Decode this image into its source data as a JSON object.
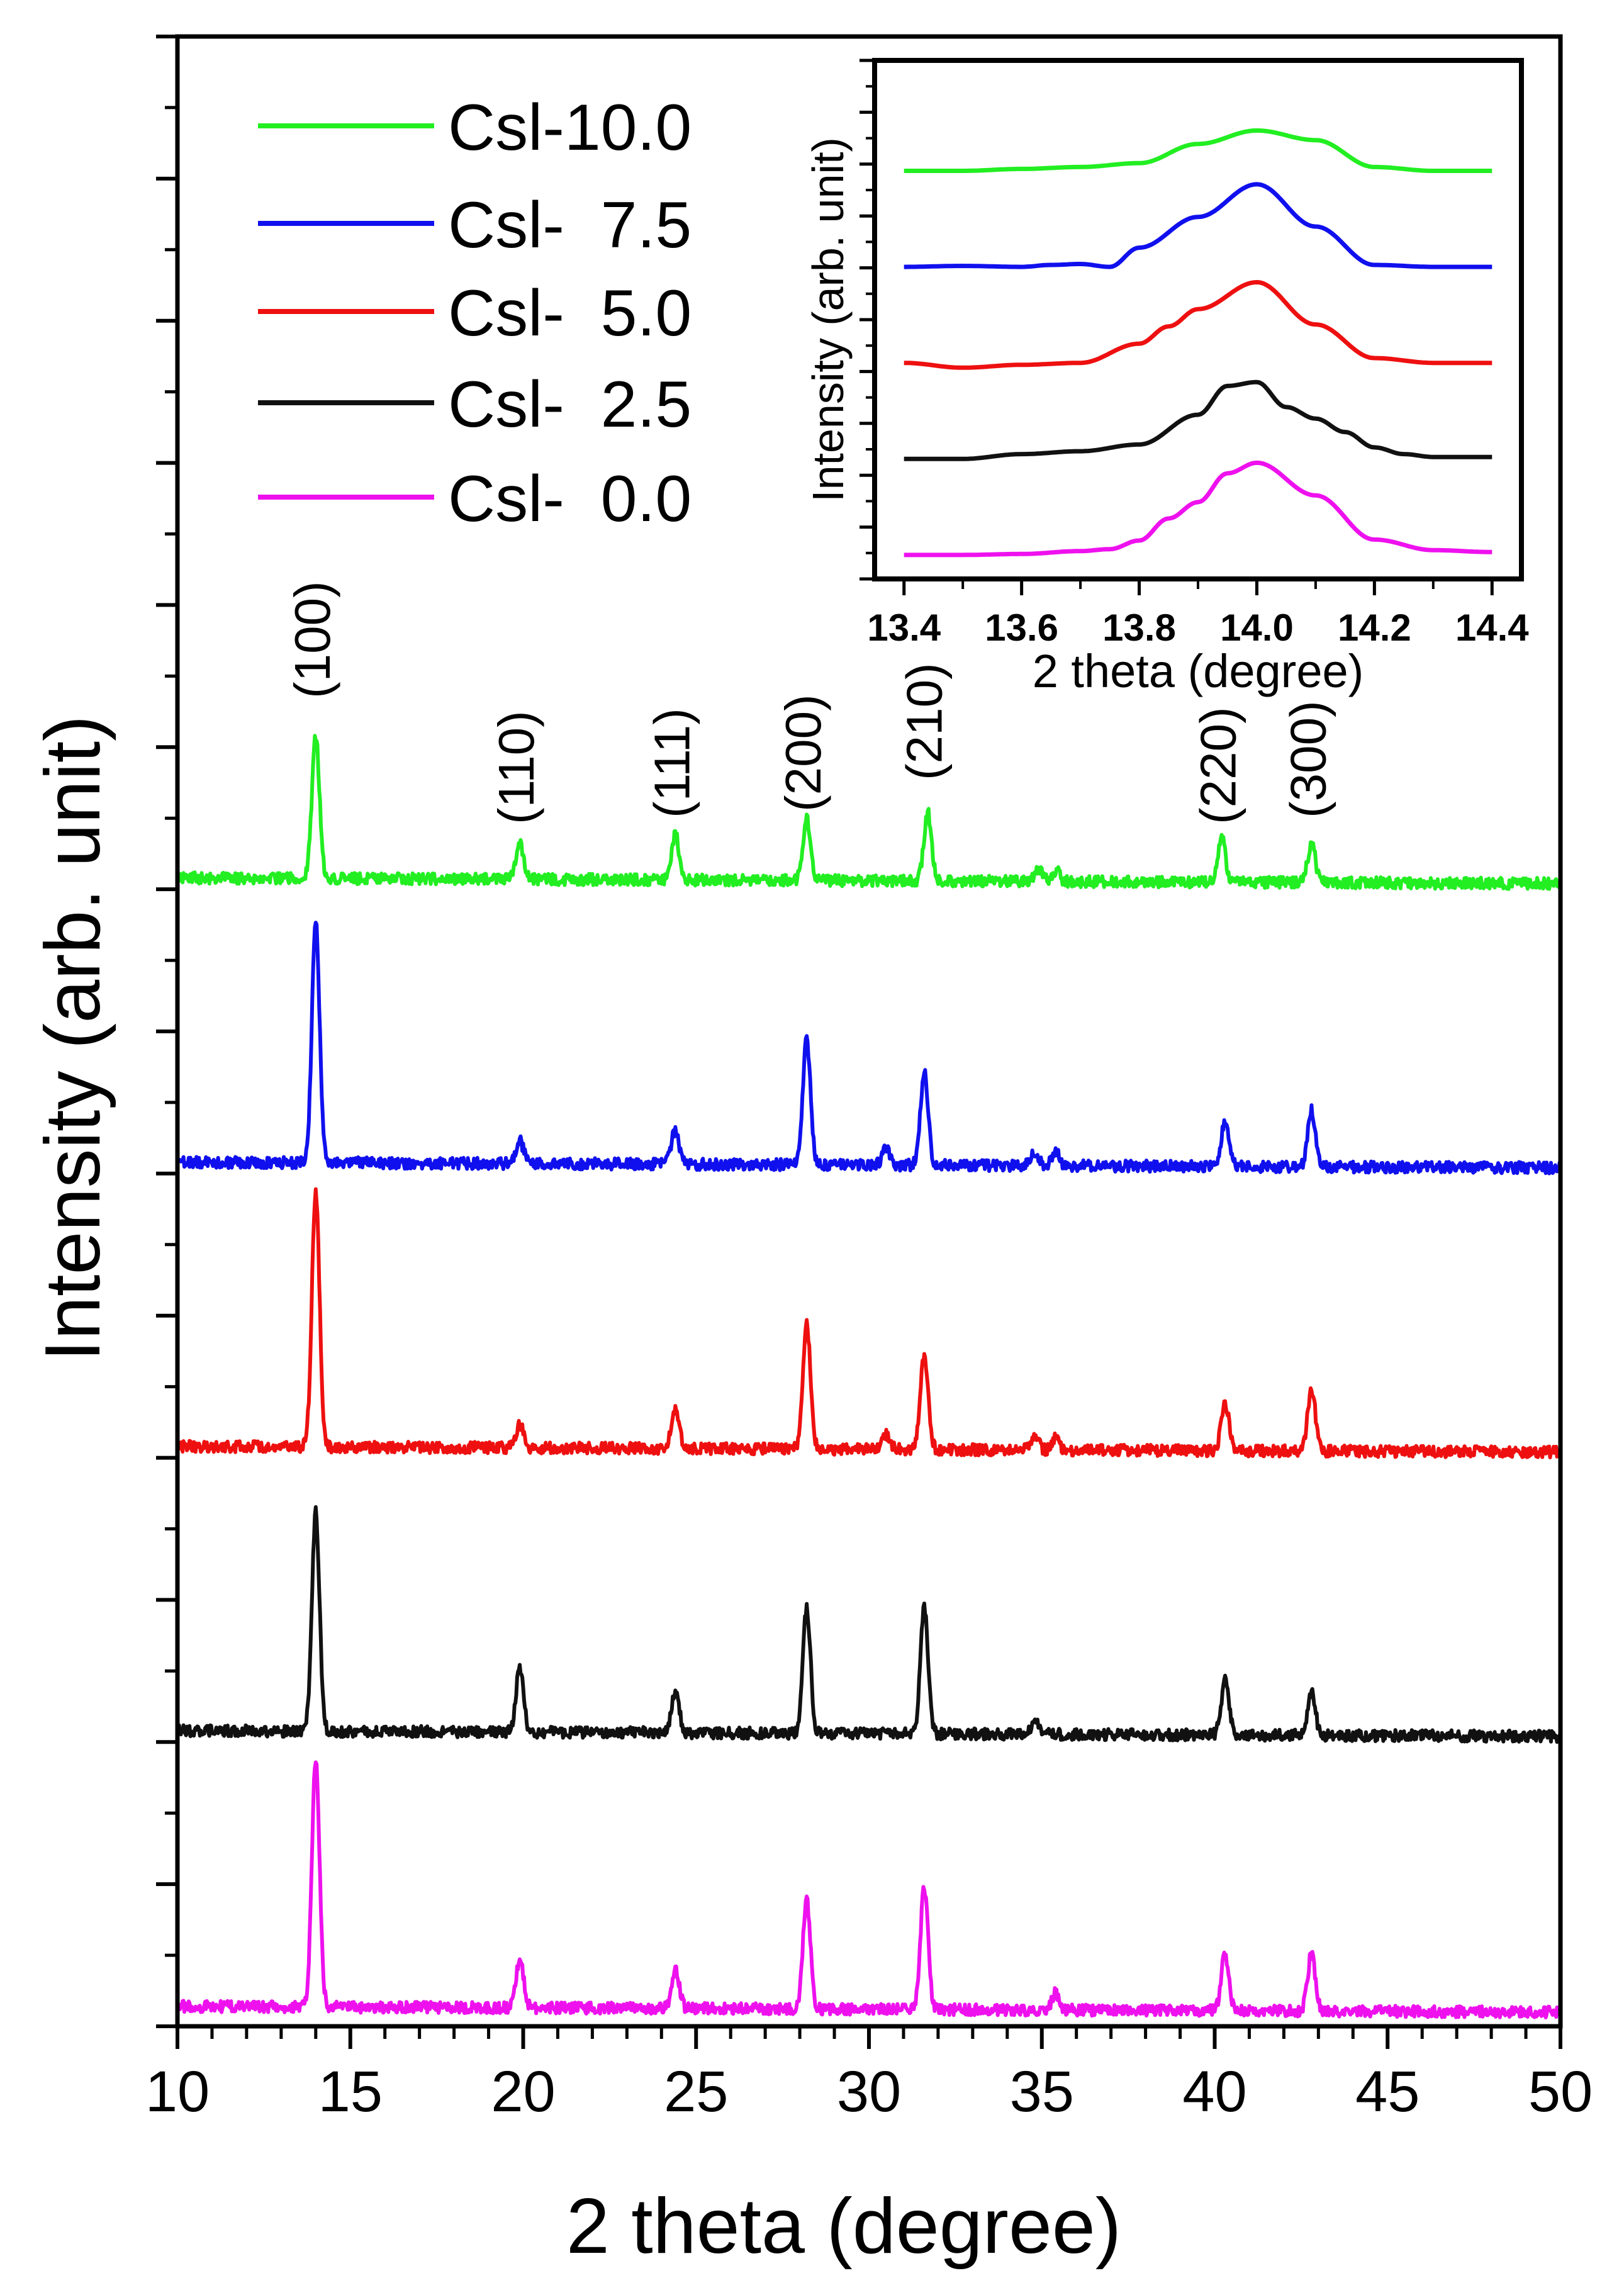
{
  "chart_data": [
    {
      "type": "line",
      "title": "",
      "xlabel": "2 theta (degree)",
      "ylabel": "Intensity (arb. unit)",
      "xlim": [
        10,
        50
      ],
      "xticks": [
        "10",
        "15",
        "20",
        "25",
        "30",
        "35",
        "40",
        "45",
        "50"
      ],
      "xtick_values": [
        10,
        15,
        20,
        25,
        30,
        35,
        40,
        45,
        50
      ],
      "ylim": [
        0,
        7
      ],
      "y_ticks_labeled": false,
      "legend_position": "top-left",
      "series": [
        {
          "name": "CsI-10.0",
          "legend": "Csl-10.0",
          "color": "#22ee22",
          "baseline": 4.0,
          "noise": 0.02,
          "peaks": [
            [
              14.0,
              0.5
            ],
            [
              19.9,
              0.13
            ],
            [
              24.4,
              0.16
            ],
            [
              28.2,
              0.22
            ],
            [
              31.7,
              0.24
            ],
            [
              34.9,
              0.04
            ],
            [
              35.4,
              0.04
            ],
            [
              40.2,
              0.16
            ],
            [
              42.8,
              0.14
            ]
          ]
        },
        {
          "name": "CsI-7.5",
          "legend": "Csl-  7.5",
          "color": "#1010ee",
          "baseline": 3.0,
          "noise": 0.02,
          "peaks": [
            [
              14.0,
              0.85
            ],
            [
              19.9,
              0.08
            ],
            [
              24.4,
              0.12
            ],
            [
              28.2,
              0.44
            ],
            [
              30.5,
              0.06
            ],
            [
              31.6,
              0.33
            ],
            [
              34.8,
              0.05
            ],
            [
              35.4,
              0.05
            ],
            [
              40.3,
              0.16
            ],
            [
              42.8,
              0.2
            ]
          ]
        },
        {
          "name": "CsI-5.0",
          "legend": "Csl-  5.0",
          "color": "#ee1010",
          "baseline": 2.0,
          "noise": 0.02,
          "peaks": [
            [
              14.0,
              0.9
            ],
            [
              19.9,
              0.08
            ],
            [
              24.4,
              0.14
            ],
            [
              28.2,
              0.44
            ],
            [
              30.5,
              0.05
            ],
            [
              31.6,
              0.33
            ],
            [
              34.8,
              0.04
            ],
            [
              35.4,
              0.04
            ],
            [
              40.3,
              0.17
            ],
            [
              42.8,
              0.22
            ]
          ]
        },
        {
          "name": "CsI-2.5",
          "legend": "Csl-  2.5",
          "color": "#111111",
          "baseline": 1.0,
          "noise": 0.02,
          "peaks": [
            [
              14.0,
              0.77
            ],
            [
              19.9,
              0.22
            ],
            [
              24.4,
              0.14
            ],
            [
              28.2,
              0.44
            ],
            [
              31.6,
              0.44
            ],
            [
              34.8,
              0.04
            ],
            [
              40.3,
              0.19
            ],
            [
              42.8,
              0.15
            ]
          ]
        },
        {
          "name": "CsI-0.0",
          "legend": "Csl-  0.0",
          "color": "#ee11ee",
          "baseline": 0.03,
          "noise": 0.02,
          "peaks": [
            [
              14.0,
              0.87
            ],
            [
              19.9,
              0.17
            ],
            [
              24.4,
              0.14
            ],
            [
              28.2,
              0.38
            ],
            [
              31.6,
              0.43
            ],
            [
              35.4,
              0.06
            ],
            [
              40.3,
              0.2
            ],
            [
              42.8,
              0.2
            ]
          ]
        }
      ],
      "annotations": [
        {
          "text": "(100)",
          "x": 14.0
        },
        {
          "text": "(110)",
          "x": 19.9
        },
        {
          "text": "(111)",
          "x": 24.4
        },
        {
          "text": "(200)",
          "x": 28.2
        },
        {
          "text": "(210)",
          "x": 31.7
        },
        {
          "text": "(220)",
          "x": 40.2
        },
        {
          "text": "(300)",
          "x": 42.8
        }
      ]
    },
    {
      "type": "line",
      "title": "",
      "role": "inset",
      "xlabel": "2 theta (degree)",
      "ylabel": "Intensity (arb. unit)",
      "xlim": [
        13.35,
        14.45
      ],
      "xticks": [
        "13.4",
        "13.6",
        "13.8",
        "14.0",
        "14.2",
        "14.4"
      ],
      "xtick_values": [
        13.4,
        13.6,
        13.8,
        14.0,
        14.2,
        14.4
      ],
      "ylim": [
        0,
        5.4
      ],
      "series": [
        {
          "name": "CsI-10.0",
          "color": "#22ee22",
          "baseline": 4.25,
          "x": [
            13.4,
            13.5,
            13.6,
            13.7,
            13.8,
            13.9,
            14.0,
            14.1,
            14.2,
            14.3,
            14.4
          ],
          "y": [
            0.0,
            0.0,
            0.02,
            0.04,
            0.08,
            0.28,
            0.42,
            0.32,
            0.04,
            0.0,
            0.0
          ]
        },
        {
          "name": "CsI-7.5",
          "color": "#1010ee",
          "baseline": 3.25,
          "x": [
            13.4,
            13.5,
            13.6,
            13.65,
            13.7,
            13.75,
            13.8,
            13.9,
            14.0,
            14.1,
            14.2,
            14.3,
            14.4
          ],
          "y": [
            0.0,
            0.01,
            0.0,
            0.02,
            0.03,
            0.0,
            0.2,
            0.52,
            0.86,
            0.42,
            0.02,
            0.0,
            0.0
          ]
        },
        {
          "name": "CsI-5.0",
          "color": "#ee1010",
          "baseline": 2.25,
          "x": [
            13.4,
            13.5,
            13.6,
            13.7,
            13.8,
            13.85,
            13.9,
            14.0,
            14.1,
            14.2,
            14.3,
            14.4
          ],
          "y": [
            0.0,
            -0.05,
            -0.02,
            0.0,
            0.2,
            0.38,
            0.56,
            0.84,
            0.4,
            0.05,
            0.0,
            0.0
          ]
        },
        {
          "name": "CsI-2.5",
          "color": "#111111",
          "baseline": 1.25,
          "x": [
            13.4,
            13.5,
            13.6,
            13.7,
            13.8,
            13.9,
            13.95,
            14.0,
            14.05,
            14.1,
            14.15,
            14.2,
            14.25,
            14.3,
            14.4
          ],
          "y": [
            0.0,
            0.0,
            0.05,
            0.08,
            0.15,
            0.46,
            0.76,
            0.8,
            0.54,
            0.42,
            0.28,
            0.12,
            0.05,
            0.02,
            0.02
          ]
        },
        {
          "name": "CsI-0.0",
          "color": "#ee11ee",
          "baseline": 0.25,
          "x": [
            13.4,
            13.5,
            13.6,
            13.7,
            13.75,
            13.8,
            13.85,
            13.9,
            13.95,
            14.0,
            14.1,
            14.2,
            14.3,
            14.4
          ],
          "y": [
            0.0,
            0.0,
            0.01,
            0.04,
            0.06,
            0.15,
            0.38,
            0.55,
            0.85,
            0.96,
            0.62,
            0.16,
            0.05,
            0.03
          ]
        }
      ]
    }
  ]
}
